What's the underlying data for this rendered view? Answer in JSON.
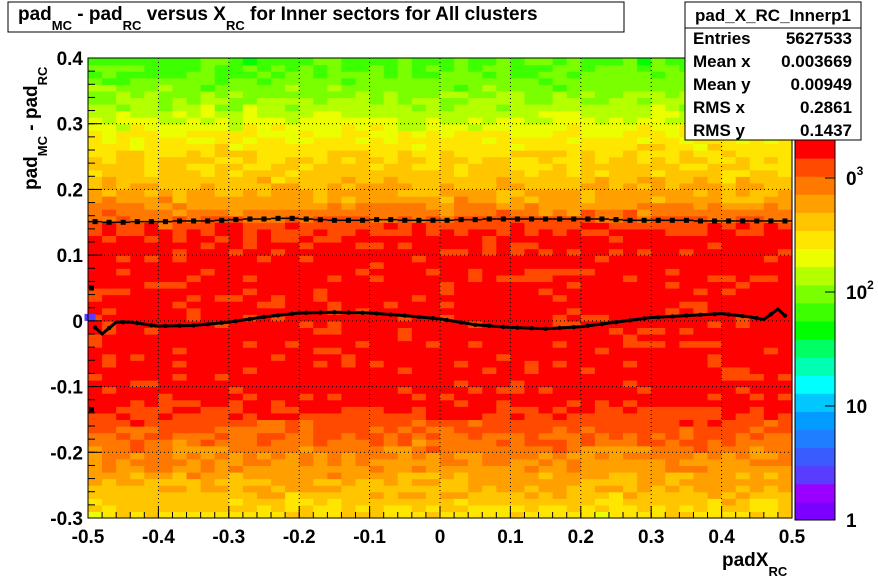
{
  "chart_data": {
    "type": "heatmap",
    "title": {
      "parts": [
        {
          "text": "pad",
          "style": "normal"
        },
        {
          "text": "MC",
          "style": "sub"
        },
        {
          "text": " - pad",
          "style": "normal"
        },
        {
          "text": "RC",
          "style": "sub"
        },
        {
          "text": " versus X",
          "style": "normal"
        },
        {
          "text": "RC",
          "style": "sub"
        },
        {
          "text": " for Inner sectors for All clusters",
          "style": "normal"
        }
      ]
    },
    "xlabel": {
      "main": "padX",
      "sub": "RC"
    },
    "ylabel": {
      "main1": "pad",
      "sub1": "MC",
      "main2": " - pad",
      "sub2": "RC"
    },
    "xlim": [
      -0.5,
      0.5
    ],
    "ylim": [
      -0.3,
      0.4
    ],
    "x_ticks": [
      -0.5,
      -0.4,
      -0.3,
      -0.2,
      -0.1,
      0,
      0.1,
      0.2,
      0.3,
      0.4,
      0.5
    ],
    "x_tick_labels": [
      "-0.5",
      "-0.4",
      "-0.3",
      "-0.2",
      "-0.1",
      "0",
      "0.1",
      "0.2",
      "0.3",
      "0.4",
      "0.5"
    ],
    "y_ticks": [
      -0.3,
      -0.2,
      -0.1,
      0,
      0.1,
      0.2,
      0.3,
      0.4
    ],
    "y_tick_labels": [
      "-0.3",
      "-0.2",
      "-0.1",
      "0",
      "0.1",
      "0.2",
      "0.3",
      "0.4"
    ],
    "grid": true,
    "z_scale": "log",
    "palette": [
      "#7b00ff",
      "#9a00ff",
      "#5a3cff",
      "#3a5cff",
      "#1e7eff",
      "#009cff",
      "#00c8ff",
      "#00ffff",
      "#00ffb0",
      "#00ff62",
      "#00ff00",
      "#3cff00",
      "#7aff00",
      "#b4ff00",
      "#ecff00",
      "#ffe600",
      "#ffc600",
      "#ffa000",
      "#ff7800",
      "#ff4a00",
      "#ff0000"
    ],
    "zaxis_labels": [
      {
        "text": "1",
        "frac": 0.0
      },
      {
        "text": "10",
        "frac": 0.3
      },
      {
        "text": "10",
        "sup": "2",
        "frac": 0.6
      },
      {
        "text": "0",
        "sup": "3",
        "frac": 0.9
      }
    ],
    "heat_profile": [
      {
        "y": 0.4,
        "level": 11
      },
      {
        "y": 0.36,
        "level": 12
      },
      {
        "y": 0.32,
        "level": 13
      },
      {
        "y": 0.27,
        "level": 15
      },
      {
        "y": 0.22,
        "level": 16
      },
      {
        "y": 0.18,
        "level": 17
      },
      {
        "y": 0.15,
        "level": 19
      },
      {
        "y": 0.12,
        "level": 20
      },
      {
        "y": -0.12,
        "level": 20
      },
      {
        "y": -0.15,
        "level": 19
      },
      {
        "y": -0.19,
        "level": 18
      },
      {
        "y": -0.23,
        "level": 17
      },
      {
        "y": -0.27,
        "level": 16
      },
      {
        "y": -0.3,
        "level": 15
      }
    ],
    "mean_profile": {
      "x": [
        -0.49,
        -0.48,
        -0.46,
        -0.44,
        -0.4,
        -0.35,
        -0.3,
        -0.25,
        -0.2,
        -0.15,
        -0.1,
        -0.05,
        0,
        0.05,
        0.1,
        0.15,
        0.2,
        0.25,
        0.3,
        0.35,
        0.4,
        0.44,
        0.46,
        0.48,
        0.49
      ],
      "y": [
        -0.01,
        -0.02,
        -0.002,
        -0.002,
        -0.008,
        -0.007,
        -0.002,
        0.006,
        0.012,
        0.013,
        0.012,
        0.008,
        0.003,
        -0.006,
        -0.01,
        -0.012,
        -0.009,
        -0.002,
        0.005,
        0.008,
        0.011,
        0.006,
        0.002,
        0.018,
        0.008
      ]
    },
    "rms_upper": {
      "x": [
        -0.49,
        -0.47,
        -0.45,
        -0.43,
        -0.41,
        -0.39,
        -0.37,
        -0.35,
        -0.33,
        -0.31,
        -0.29,
        -0.27,
        -0.25,
        -0.23,
        -0.21,
        -0.19,
        -0.17,
        -0.15,
        -0.13,
        -0.11,
        -0.09,
        -0.07,
        -0.05,
        -0.03,
        -0.01,
        0.01,
        0.03,
        0.05,
        0.07,
        0.09,
        0.11,
        0.13,
        0.15,
        0.17,
        0.19,
        0.21,
        0.23,
        0.25,
        0.27,
        0.29,
        0.31,
        0.33,
        0.35,
        0.37,
        0.39,
        0.41,
        0.43,
        0.45,
        0.47,
        0.49
      ],
      "y": [
        0.151,
        0.15,
        0.15,
        0.151,
        0.151,
        0.151,
        0.152,
        0.152,
        0.152,
        0.153,
        0.154,
        0.155,
        0.155,
        0.156,
        0.156,
        0.155,
        0.154,
        0.153,
        0.153,
        0.153,
        0.154,
        0.154,
        0.153,
        0.153,
        0.153,
        0.153,
        0.154,
        0.154,
        0.155,
        0.155,
        0.155,
        0.155,
        0.155,
        0.155,
        0.155,
        0.155,
        0.155,
        0.154,
        0.153,
        0.153,
        0.153,
        0.153,
        0.153,
        0.152,
        0.152,
        0.152,
        0.152,
        0.152,
        0.152,
        0.152
      ]
    },
    "extra_markers": [
      {
        "x": -0.495,
        "y": 0.05
      },
      {
        "x": -0.495,
        "y": -0.135
      }
    ],
    "blue_tick": {
      "x": -0.495,
      "y": 0.006
    }
  },
  "stats_box": {
    "name": "pad_X_RC_Innerp1",
    "rows": [
      {
        "label": "Entries",
        "value": "5627533"
      },
      {
        "label": "Mean x",
        "value": "0.003669"
      },
      {
        "label": "Mean y",
        "value": "0.00949"
      },
      {
        "label": "RMS x",
        "value": "0.2861"
      },
      {
        "label": "RMS y",
        "value": "0.1437"
      }
    ]
  }
}
